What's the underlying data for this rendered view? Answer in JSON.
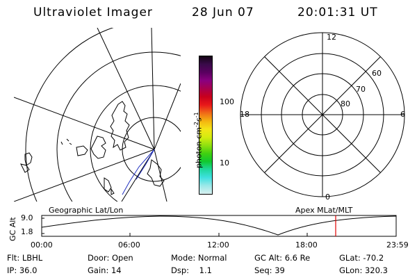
{
  "header": {
    "title": "Ultraviolet Imager",
    "date": "28 Jun 07",
    "time": "20:01:31 UT"
  },
  "colorbar": {
    "unit_label_main": "photon cm",
    "unit_sup1": "-2",
    "unit_mid": "s",
    "unit_sup2": "-1",
    "tick_100": "100",
    "tick_10": "10",
    "colors": [
      "#140414",
      "#3a0a4a",
      "#5a0060",
      "#8a0080",
      "#a8004e",
      "#c8001c",
      "#e8181a",
      "#f06a18",
      "#f4b410",
      "#f4e418",
      "#d4ec10",
      "#90e010",
      "#40d010",
      "#10c830",
      "#20d8a0",
      "#40e0e0",
      "#9ce8e8",
      "#d8f0f0"
    ]
  },
  "left_panel": {
    "label": "Geographic Lat/Lon"
  },
  "right_panel": {
    "label": "Apex MLat/MLT",
    "mlt_12": "12",
    "mlt_18": "18",
    "mlt_6": "6",
    "mlt_0": "0",
    "lat_60": "60",
    "lat_70": "70",
    "lat_80": "80"
  },
  "timeline": {
    "ylabel": "GC Alt",
    "y_top": "9.0",
    "y_bottom": "1.8",
    "ticks": [
      "00:00",
      "06:00",
      "12:00",
      "18:00",
      "23:59"
    ],
    "current_time_color": "#e00000"
  },
  "meta": {
    "flt_label": "Flt:",
    "flt_value": "LBHL",
    "ip_label": "IP:",
    "ip_value": "36.0",
    "door_label": "Door:",
    "door_value": "Open",
    "gain_label": "Gain:",
    "gain_value": "14",
    "mode_label": "Mode:",
    "mode_value": "Normal",
    "dsp_label": "Dsp:",
    "dsp_value": "1.1",
    "gcalt_label": "GC Alt:",
    "gcalt_value": "6.6 Re",
    "seq_label": "Seq:",
    "seq_value": "39",
    "glat_label": "GLat:",
    "glat_value": "-70.2",
    "glon_label": "GLon:",
    "glon_value": "320.3"
  }
}
